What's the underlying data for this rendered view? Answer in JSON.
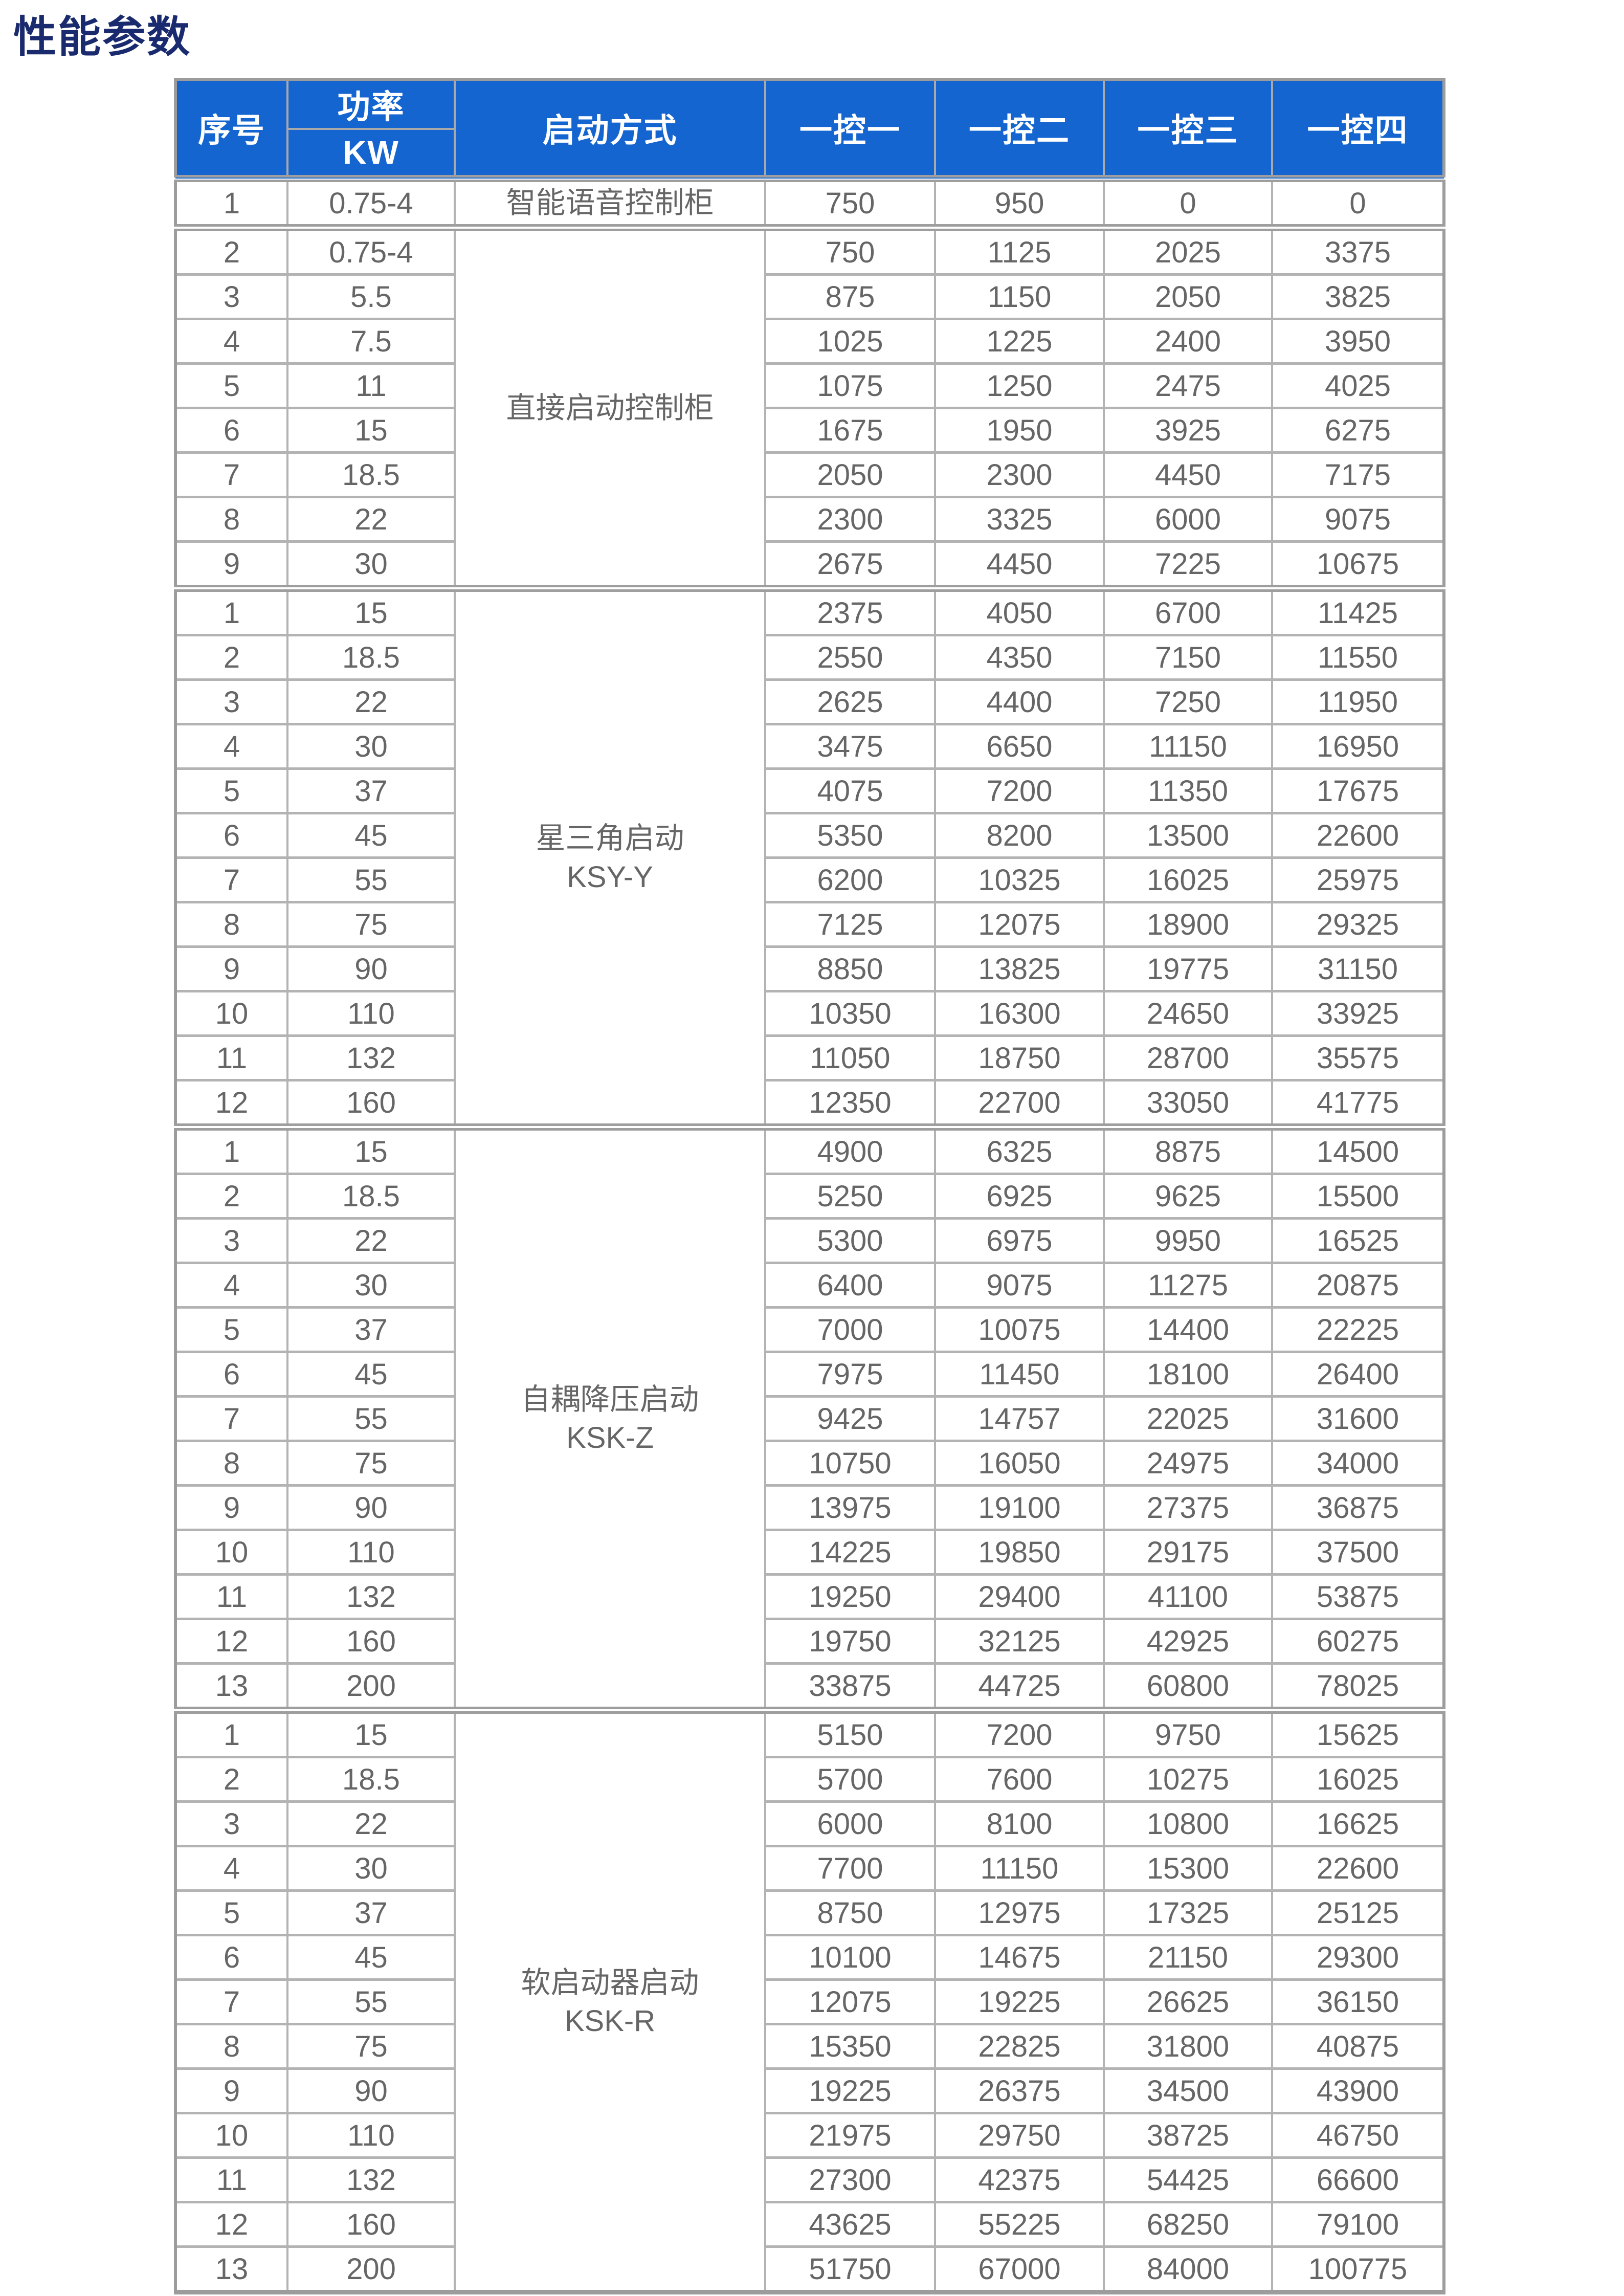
{
  "page": {
    "title": "性能参数"
  },
  "colors": {
    "header_bg": "#1565d0",
    "header_text": "#ffffff",
    "title_text": "#1a2a6e",
    "border_gray": "#a9a9a9",
    "body_text": "#666666"
  },
  "table": {
    "headers": {
      "col_index": "序号",
      "col_power_top": "功率",
      "col_power_bottom": "KW",
      "col_method": "启动方式",
      "col_c1": "一控一",
      "col_c2": "一控二",
      "col_c3": "一控三",
      "col_c4": "一控四"
    },
    "sections": [
      {
        "method_lines": [
          "智能语音控制柜"
        ],
        "rows": [
          {
            "no": "1",
            "kw": "0.75-4",
            "values": [
              "750",
              "950",
              "0",
              "0"
            ]
          }
        ]
      },
      {
        "method_lines": [
          "直接启动控制柜"
        ],
        "rows": [
          {
            "no": "2",
            "kw": "0.75-4",
            "values": [
              "750",
              "1125",
              "2025",
              "3375"
            ]
          },
          {
            "no": "3",
            "kw": "5.5",
            "values": [
              "875",
              "1150",
              "2050",
              "3825"
            ]
          },
          {
            "no": "4",
            "kw": "7.5",
            "values": [
              "1025",
              "1225",
              "2400",
              "3950"
            ]
          },
          {
            "no": "5",
            "kw": "11",
            "values": [
              "1075",
              "1250",
              "2475",
              "4025"
            ]
          },
          {
            "no": "6",
            "kw": "15",
            "values": [
              "1675",
              "1950",
              "3925",
              "6275"
            ]
          },
          {
            "no": "7",
            "kw": "18.5",
            "values": [
              "2050",
              "2300",
              "4450",
              "7175"
            ]
          },
          {
            "no": "8",
            "kw": "22",
            "values": [
              "2300",
              "3325",
              "6000",
              "9075"
            ]
          },
          {
            "no": "9",
            "kw": "30",
            "values": [
              "2675",
              "4450",
              "7225",
              "10675"
            ]
          }
        ]
      },
      {
        "method_lines": [
          "星三角启动",
          "KSY-Y"
        ],
        "rows": [
          {
            "no": "1",
            "kw": "15",
            "values": [
              "2375",
              "4050",
              "6700",
              "11425"
            ]
          },
          {
            "no": "2",
            "kw": "18.5",
            "values": [
              "2550",
              "4350",
              "7150",
              "11550"
            ]
          },
          {
            "no": "3",
            "kw": "22",
            "values": [
              "2625",
              "4400",
              "7250",
              "11950"
            ]
          },
          {
            "no": "4",
            "kw": "30",
            "values": [
              "3475",
              "6650",
              "11150",
              "16950"
            ]
          },
          {
            "no": "5",
            "kw": "37",
            "values": [
              "4075",
              "7200",
              "11350",
              "17675"
            ]
          },
          {
            "no": "6",
            "kw": "45",
            "values": [
              "5350",
              "8200",
              "13500",
              "22600"
            ]
          },
          {
            "no": "7",
            "kw": "55",
            "values": [
              "6200",
              "10325",
              "16025",
              "25975"
            ]
          },
          {
            "no": "8",
            "kw": "75",
            "values": [
              "7125",
              "12075",
              "18900",
              "29325"
            ]
          },
          {
            "no": "9",
            "kw": "90",
            "values": [
              "8850",
              "13825",
              "19775",
              "31150"
            ]
          },
          {
            "no": "10",
            "kw": "110",
            "values": [
              "10350",
              "16300",
              "24650",
              "33925"
            ]
          },
          {
            "no": "11",
            "kw": "132",
            "values": [
              "11050",
              "18750",
              "28700",
              "35575"
            ]
          },
          {
            "no": "12",
            "kw": "160",
            "values": [
              "12350",
              "22700",
              "33050",
              "41775"
            ]
          }
        ]
      },
      {
        "method_lines": [
          "自耦降压启动",
          "KSK-Z"
        ],
        "rows": [
          {
            "no": "1",
            "kw": "15",
            "values": [
              "4900",
              "6325",
              "8875",
              "14500"
            ]
          },
          {
            "no": "2",
            "kw": "18.5",
            "values": [
              "5250",
              "6925",
              "9625",
              "15500"
            ]
          },
          {
            "no": "3",
            "kw": "22",
            "values": [
              "5300",
              "6975",
              "9950",
              "16525"
            ]
          },
          {
            "no": "4",
            "kw": "30",
            "values": [
              "6400",
              "9075",
              "11275",
              "20875"
            ]
          },
          {
            "no": "5",
            "kw": "37",
            "values": [
              "7000",
              "10075",
              "14400",
              "22225"
            ]
          },
          {
            "no": "6",
            "kw": "45",
            "values": [
              "7975",
              "11450",
              "18100",
              "26400"
            ]
          },
          {
            "no": "7",
            "kw": "55",
            "values": [
              "9425",
              "14757",
              "22025",
              "31600"
            ]
          },
          {
            "no": "8",
            "kw": "75",
            "values": [
              "10750",
              "16050",
              "24975",
              "34000"
            ]
          },
          {
            "no": "9",
            "kw": "90",
            "values": [
              "13975",
              "19100",
              "27375",
              "36875"
            ]
          },
          {
            "no": "10",
            "kw": "110",
            "values": [
              "14225",
              "19850",
              "29175",
              "37500"
            ]
          },
          {
            "no": "11",
            "kw": "132",
            "values": [
              "19250",
              "29400",
              "41100",
              "53875"
            ]
          },
          {
            "no": "12",
            "kw": "160",
            "values": [
              "19750",
              "32125",
              "42925",
              "60275"
            ]
          },
          {
            "no": "13",
            "kw": "200",
            "values": [
              "33875",
              "44725",
              "60800",
              "78025"
            ]
          }
        ]
      },
      {
        "method_lines": [
          "软启动器启动",
          "KSK-R"
        ],
        "rows": [
          {
            "no": "1",
            "kw": "15",
            "values": [
              "5150",
              "7200",
              "9750",
              "15625"
            ]
          },
          {
            "no": "2",
            "kw": "18.5",
            "values": [
              "5700",
              "7600",
              "10275",
              "16025"
            ]
          },
          {
            "no": "3",
            "kw": "22",
            "values": [
              "6000",
              "8100",
              "10800",
              "16625"
            ]
          },
          {
            "no": "4",
            "kw": "30",
            "values": [
              "7700",
              "11150",
              "15300",
              "22600"
            ]
          },
          {
            "no": "5",
            "kw": "37",
            "values": [
              "8750",
              "12975",
              "17325",
              "25125"
            ]
          },
          {
            "no": "6",
            "kw": "45",
            "values": [
              "10100",
              "14675",
              "21150",
              "29300"
            ]
          },
          {
            "no": "7",
            "kw": "55",
            "values": [
              "12075",
              "19225",
              "26625",
              "36150"
            ]
          },
          {
            "no": "8",
            "kw": "75",
            "values": [
              "15350",
              "22825",
              "31800",
              "40875"
            ]
          },
          {
            "no": "9",
            "kw": "90",
            "values": [
              "19225",
              "26375",
              "34500",
              "43900"
            ]
          },
          {
            "no": "10",
            "kw": "110",
            "values": [
              "21975",
              "29750",
              "38725",
              "46750"
            ]
          },
          {
            "no": "11",
            "kw": "132",
            "values": [
              "27300",
              "42375",
              "54425",
              "66600"
            ]
          },
          {
            "no": "12",
            "kw": "160",
            "values": [
              "43625",
              "55225",
              "68250",
              "79100"
            ]
          },
          {
            "no": "13",
            "kw": "200",
            "values": [
              "51750",
              "67000",
              "84000",
              "100775"
            ]
          }
        ]
      }
    ]
  }
}
